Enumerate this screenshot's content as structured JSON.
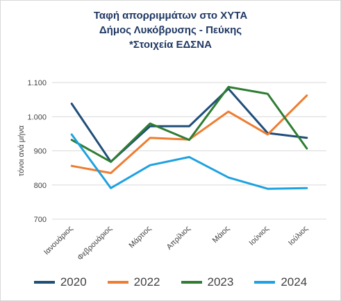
{
  "title": {
    "line1": "Ταφή απορριμμάτων στο ΧΥΤΑ",
    "line2": "Δήμος Λυκόβρυσης - Πεύκης",
    "line3": "*Στοιχεία ΕΔΣΝΑ"
  },
  "chart_data": {
    "type": "line",
    "title": "Ταφή απορριμμάτων στο ΧΥΤΑ Δήμος Λυκόβρυσης - Πεύκης *Στοιχεία ΕΔΣΝΑ",
    "ylabel": "τόνοι ανά μήνα",
    "xlabel": "",
    "categories": [
      "Ιανουάριος",
      "Φεβρουάριος",
      "Μάρτιος",
      "Απρίλιος",
      "Μάιος",
      "Ιούνιος",
      "Ιούλιος"
    ],
    "ylim": [
      700,
      1100
    ],
    "yticks": [
      700,
      800,
      900,
      1000,
      1100
    ],
    "ytick_labels": [
      "700",
      "800",
      "900",
      "1.000",
      "1.100"
    ],
    "grid": true,
    "legend_position": "bottom",
    "series": [
      {
        "name": "2020",
        "color": "#1f4e79",
        "values": [
          1038,
          868,
          972,
          972,
          1082,
          952,
          938
        ]
      },
      {
        "name": "2022",
        "color": "#ed7d31",
        "values": [
          856,
          835,
          938,
          933,
          1015,
          948,
          1062
        ]
      },
      {
        "name": "2023",
        "color": "#2e7d32",
        "values": [
          932,
          868,
          980,
          932,
          1087,
          1067,
          907
        ]
      },
      {
        "name": "2024",
        "color": "#1ea1e0",
        "values": [
          948,
          791,
          858,
          882,
          822,
          789,
          791
        ]
      }
    ]
  }
}
